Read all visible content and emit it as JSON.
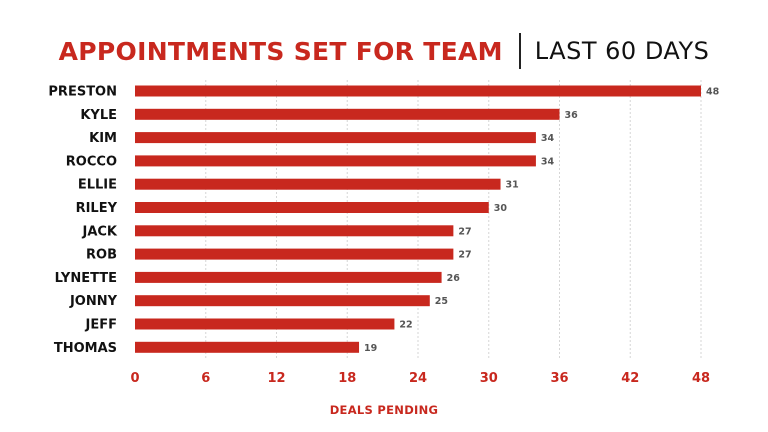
{
  "chart_data": {
    "type": "bar",
    "orientation": "horizontal",
    "title": "APPOINTMENTS SET FOR TEAM",
    "subtitle": "LAST 60 DAYS",
    "categories": [
      "PRESTON",
      "KYLE",
      "KIM",
      "ROCCO",
      "ELLIE",
      "RILEY",
      "JACK",
      "ROB",
      "LYNETTE",
      "JONNY",
      "JEFF",
      "THOMAS"
    ],
    "values": [
      48,
      36,
      34,
      34,
      31,
      30,
      27,
      27,
      26,
      25,
      22,
      19
    ],
    "xlabel": "DEALS PENDING",
    "ylabel": "",
    "xlim": [
      0,
      48
    ],
    "xticks": [
      0,
      6,
      12,
      18,
      24,
      30,
      36,
      42,
      48
    ],
    "grid": true,
    "bar_color": "#c8281e",
    "accent_color": "#c8281e"
  }
}
